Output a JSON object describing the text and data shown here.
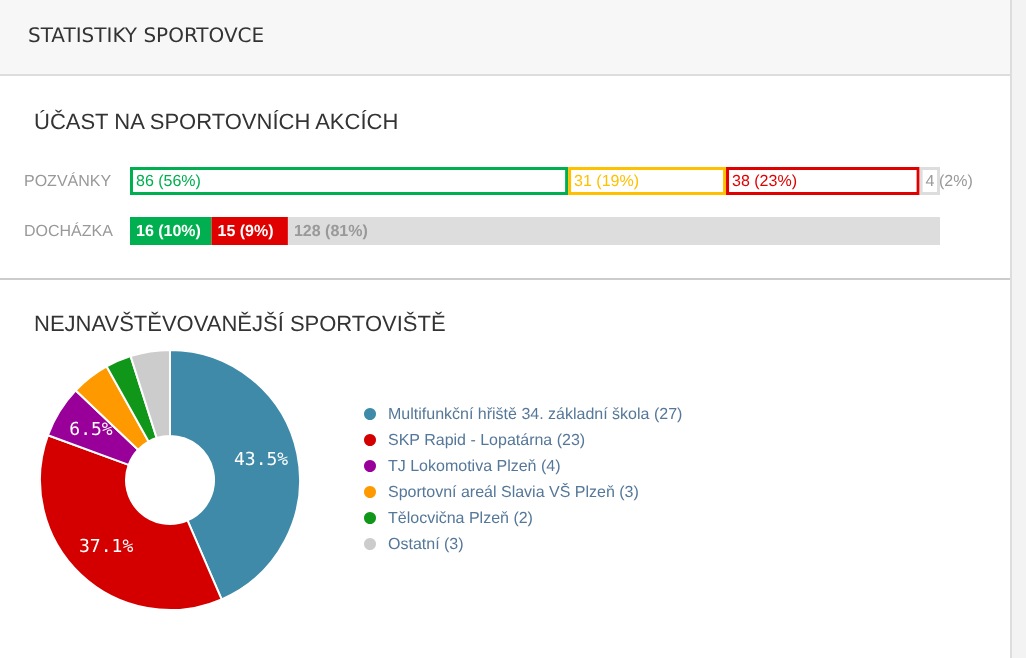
{
  "chart_data": [
    {
      "type": "bar",
      "title": "ÚČAST NA SPORTOVNÍCH AKCÍCH",
      "annotations": [
        "STATISTIKY SPORTOVCE"
      ],
      "orientation": "horizontal",
      "stacked": true,
      "categories": [
        "POZVÁNKY",
        "DOCHÁZKA"
      ],
      "series": [
        {
          "color": "#00b050",
          "values": [
            86,
            16
          ],
          "value_labels": [
            "86 (56%)",
            "16 (10%)"
          ]
        },
        {
          "color": "#ffc000",
          "values": [
            31,
            null
          ],
          "value_labels": [
            "31 (19%)",
            null
          ]
        },
        {
          "color": "#e00000",
          "values": [
            38,
            15
          ],
          "value_labels": [
            "38 (23%)",
            "15 (9%)"
          ]
        },
        {
          "color": "#dddddd",
          "values": [
            4,
            128
          ],
          "value_labels": [
            "4 (2%)",
            "128 (81%)"
          ]
        }
      ],
      "legend": false
    },
    {
      "type": "donut",
      "title": "NEJNAVŠTĚVOVANĚJŠÍ SPORTOVIŠTĚ",
      "categories": [
        "Multifunkční hřiště 34. základní škola (27)",
        "SKP Rapid - Lopatárna (23)",
        "TJ Lokomotiva Plzeň (4)",
        "Sportovní areál Slavia VŠ Plzeň (3)",
        "Tělocvična Plzeň (2)",
        "Ostatní (3)"
      ],
      "values": [
        43.5,
        37.1,
        6.5,
        4.8,
        3.2,
        4.9
      ],
      "colors": [
        "#3e8aa8",
        "#d40000",
        "#990099",
        "#ff9900",
        "#109618",
        "#cccccc"
      ],
      "value_labels": [
        "43.5%",
        "37.1%",
        "6.5%",
        null,
        null,
        null
      ],
      "legend": "right"
    }
  ]
}
